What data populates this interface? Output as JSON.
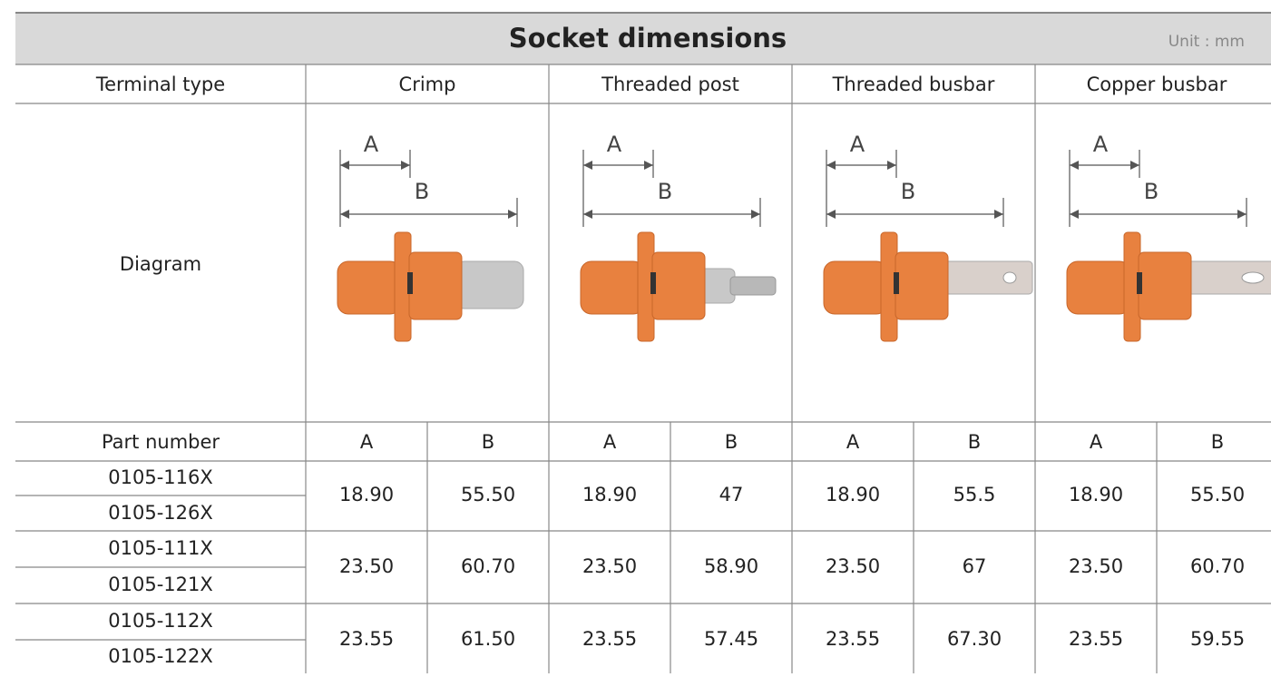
{
  "title": "Socket dimensions",
  "unit": "Unit : mm",
  "header": {
    "label": "Terminal type",
    "types": [
      "Crimp",
      "Threaded post",
      "Threaded busbar",
      "Copper busbar"
    ]
  },
  "diagram": {
    "label": "Diagram",
    "dimension_labels": [
      "A",
      "B"
    ]
  },
  "subheader": {
    "label": "Part number",
    "columns": [
      "A",
      "B"
    ]
  },
  "groups": [
    {
      "parts": [
        "0105-116X",
        "0105-126X"
      ],
      "values": [
        "18.90",
        "55.50",
        "18.90",
        "47",
        "18.90",
        "55.5",
        "18.90",
        "55.50"
      ]
    },
    {
      "parts": [
        "0105-111X",
        "0105-121X"
      ],
      "values": [
        "23.50",
        "60.70",
        "23.50",
        "58.90",
        "23.50",
        "67",
        "23.50",
        "60.70"
      ]
    },
    {
      "parts": [
        "0105-112X",
        "0105-122X"
      ],
      "values": [
        "23.55",
        "61.50",
        "23.55",
        "57.45",
        "23.55",
        "67.30",
        "23.55",
        "59.55"
      ]
    }
  ]
}
